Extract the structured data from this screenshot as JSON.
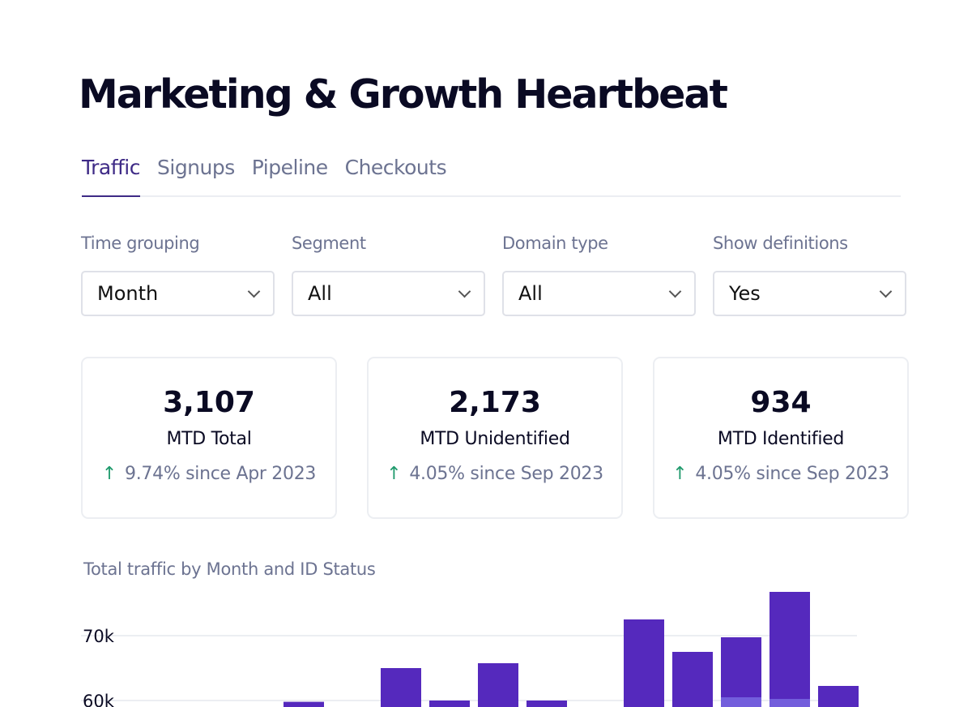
{
  "title": "Marketing & Growth Heartbeat",
  "tabs": [
    {
      "label": "Traffic",
      "active": true
    },
    {
      "label": "Signups"
    },
    {
      "label": "Pipeline"
    },
    {
      "label": "Checkouts"
    }
  ],
  "filters": [
    {
      "label": "Time grouping",
      "value": "Month"
    },
    {
      "label": "Segment",
      "value": "All"
    },
    {
      "label": "Domain type",
      "value": "All"
    },
    {
      "label": "Show definitions",
      "value": "Yes"
    }
  ],
  "kpis": [
    {
      "value": "3,107",
      "label": "MTD Total",
      "delta": "9.74% since Apr 2023",
      "trend": "up"
    },
    {
      "value": "2,173",
      "label": "MTD Unidentified",
      "delta": "4.05% since Sep 2023",
      "trend": "up"
    },
    {
      "value": "934",
      "label": "MTD Identified",
      "delta": "4.05% since Sep 2023",
      "trend": "up"
    }
  ],
  "colors": {
    "primary_bar": "#5529bd",
    "secondary_bar": "#735edc",
    "up_arrow": "#1f9a6c"
  },
  "chart_data": {
    "type": "bar",
    "stacked": true,
    "title": "Total traffic by Month and ID Status",
    "y_ticks": [
      "60k",
      "70k"
    ],
    "ylim_visible": [
      59000,
      78000
    ],
    "grid": true,
    "bars": [
      {
        "total": 59800
      },
      {
        "total": 65000
      },
      {
        "total": 60000
      },
      {
        "total": 65750
      },
      {
        "total": 60000
      },
      {
        "total": 72500
      },
      {
        "total": 67500
      },
      {
        "total": 69750,
        "lower_segment": 60500
      },
      {
        "total": 76750,
        "lower_segment": 60250
      },
      {
        "total": 62250
      }
    ],
    "bar_slots": [
      4,
      6,
      7,
      8,
      9,
      11,
      12,
      13,
      14,
      15
    ]
  }
}
